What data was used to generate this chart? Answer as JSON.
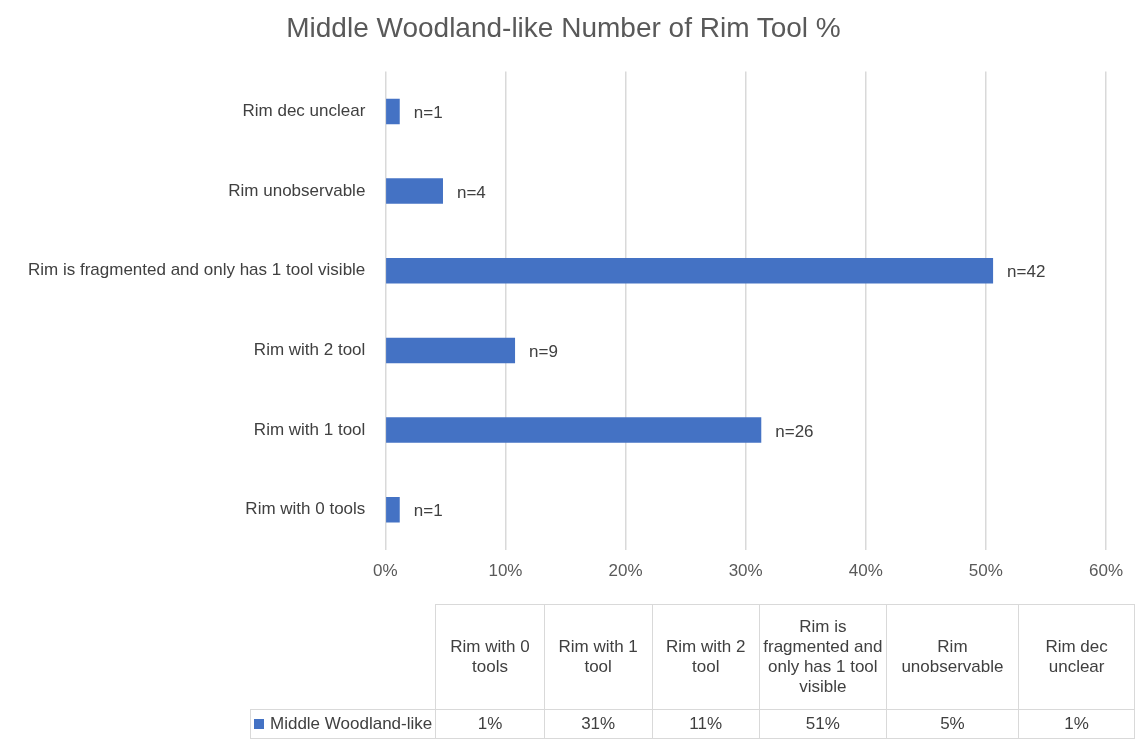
{
  "chart_data": [
    {
      "type": "bar",
      "title": "Middle Woodland-like Number of Rim Tool %",
      "orientation": "horizontal",
      "categories": [
        "Rim dec unclear",
        "Rim unobservable",
        "Rim is fragmented and only has 1 tool visible",
        "Rim with 2 tool",
        "Rim with 1 tool",
        "Rim with 0 tools"
      ],
      "series": [
        {
          "color": "#4472c4",
          "values": [
            1.2,
            4.8,
            50.6,
            10.8,
            31.3,
            1.2
          ]
        }
      ],
      "annotations": [
        {
          "text": "n=1",
          "x": 1.2,
          "y": "Rim dec unclear"
        },
        {
          "text": "n=4",
          "x": 4.8,
          "y": "Rim unobservable"
        },
        {
          "text": "n=42",
          "x": 50.6,
          "y": "Rim is fragmented and only has 1 tool visible"
        },
        {
          "text": "n=9",
          "x": 10.8,
          "y": "Rim with 2 tool"
        },
        {
          "text": "n=26",
          "x": 31.3,
          "y": "Rim with 1 tool"
        },
        {
          "text": "n=1",
          "x": 1.2,
          "y": "Rim with 0 tools"
        }
      ],
      "xlim": [
        0,
        60
      ],
      "xticks": [
        {
          "value": 0,
          "label": "0%"
        },
        {
          "value": 10,
          "label": "10%"
        },
        {
          "value": 20,
          "label": "20%"
        },
        {
          "value": 30,
          "label": "30%"
        },
        {
          "value": 40,
          "label": "40%"
        },
        {
          "value": 50,
          "label": "50%"
        },
        {
          "value": 60,
          "label": "60%"
        }
      ],
      "grid": "x",
      "legend": false
    },
    {
      "type": "other",
      "categories": [
        "Rim with 0 tools",
        "Rim with 1 tool",
        "Rim with 2 tool",
        "Rim is fragmented and only has 1 tool visible",
        "Rim unobservable",
        "Rim dec unclear"
      ],
      "series": [
        {
          "name": "Middle Woodland-like",
          "color": "#4472c4",
          "values": [
            1,
            31,
            11,
            51,
            5,
            1
          ],
          "value_labels": [
            "1%",
            "31%",
            "11%",
            "51%",
            "5%",
            "1%"
          ]
        }
      ]
    }
  ]
}
